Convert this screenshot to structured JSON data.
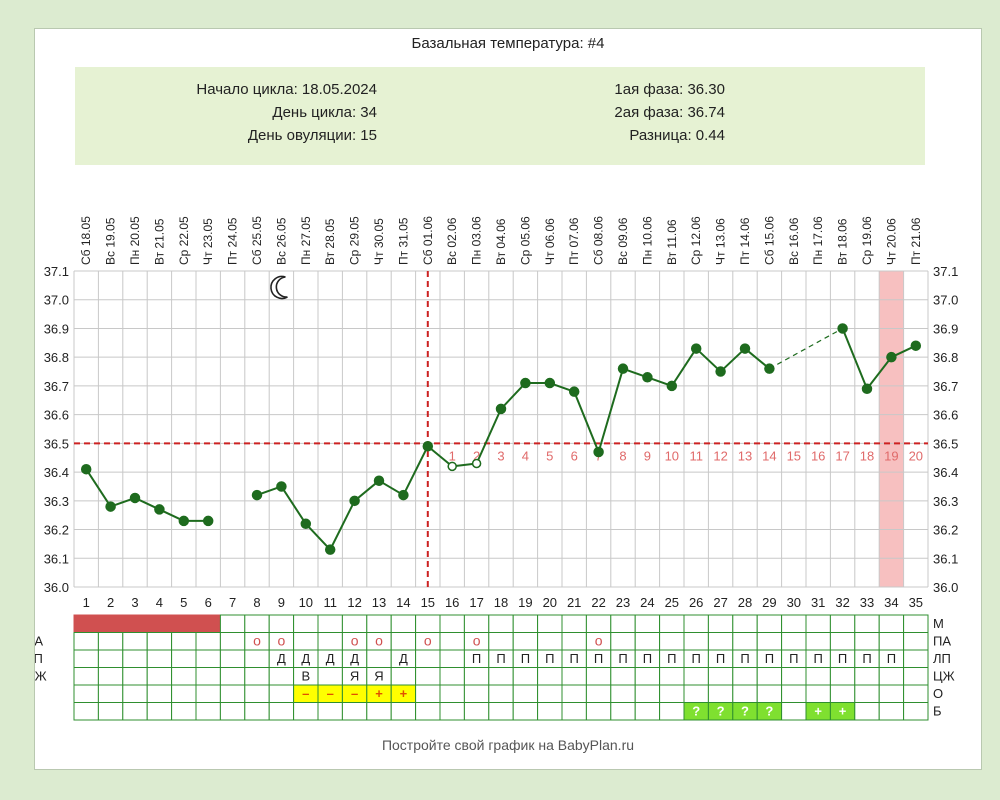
{
  "title": "Базальная температура: #4",
  "info": {
    "cycle_start": "Начало цикла: 18.05.2024",
    "cycle_day": "День цикла: 34",
    "ovulation_day": "День овуляции: 15",
    "phase1": "1ая фаза: 36.30",
    "phase2": "2ая фаза: 36.74",
    "difference": "Разница: 0.44"
  },
  "footer": "Постройте свой график на BabyPlan.ru",
  "colors": {
    "line": "#1e6b1e",
    "threshold": "#cc2222",
    "grid": "#c8c8c8",
    "menstruation": "#d05050",
    "highlight": "#f7c0c0",
    "mucus": "#ffff00",
    "test_positive": "#7fe030",
    "phase_numbers": "#e06a6a"
  },
  "moon_icon": "crescent-moon-icon",
  "chart_data": {
    "type": "line",
    "title": "Базальная температура: #4",
    "ylim": [
      36.0,
      37.1
    ],
    "yticks": [
      "37.1",
      "37.0",
      "36.9",
      "36.8",
      "36.7",
      "36.6",
      "36.5",
      "36.4",
      "36.3",
      "36.2",
      "36.1",
      "36.0"
    ],
    "days": [
      "1",
      "2",
      "3",
      "4",
      "5",
      "6",
      "7",
      "8",
      "9",
      "10",
      "11",
      "12",
      "13",
      "14",
      "15",
      "16",
      "17",
      "18",
      "19",
      "20",
      "21",
      "22",
      "23",
      "24",
      "25",
      "26",
      "27",
      "28",
      "29",
      "30",
      "31",
      "32",
      "33",
      "34",
      "35"
    ],
    "dates": [
      "Сб 18.05",
      "Вс 19.05",
      "Пн 20.05",
      "Вт 21.05",
      "Ср 22.05",
      "Чт 23.05",
      "Пт 24.05",
      "Сб 25.05",
      "Вс 26.05",
      "Пн 27.05",
      "Вт 28.05",
      "Ср 29.05",
      "Чт 30.05",
      "Пт 31.05",
      "Сб 01.06",
      "Вс 02.06",
      "Пн 03.06",
      "Вт 04.06",
      "Ср 05.06",
      "Чт 06.06",
      "Пт 07.06",
      "Сб 08.06",
      "Вс 09.06",
      "Пн 10.06",
      "Вт 11.06",
      "Ср 12.06",
      "Чт 13.06",
      "Пт 14.06",
      "Сб 15.06",
      "Вс 16.06",
      "Пн 17.06",
      "Вт 18.06",
      "Ср 19.06",
      "Чт 20.06",
      "Пт 21.06"
    ],
    "temperatures": [
      36.41,
      36.28,
      36.31,
      36.27,
      36.23,
      36.23,
      null,
      36.32,
      36.35,
      36.22,
      36.13,
      36.3,
      36.37,
      36.32,
      36.49,
      36.42,
      36.43,
      36.62,
      36.71,
      36.71,
      36.68,
      36.47,
      36.76,
      36.73,
      36.7,
      36.83,
      36.75,
      36.83,
      36.76,
      null,
      null,
      36.9,
      36.69,
      36.8,
      36.84
    ],
    "open_points": [
      16,
      17
    ],
    "gap_dashed": [
      [
        29,
        32
      ]
    ],
    "coverline": 36.5,
    "ovulation_day": 15,
    "moon_day": 9,
    "highlight_day": 34,
    "phase_numbers": [
      "1",
      "2",
      "3",
      "4",
      "5",
      "6",
      "7",
      "8",
      "9",
      "10",
      "11",
      "12",
      "13",
      "14",
      "15",
      "16",
      "17",
      "18",
      "19",
      "20"
    ],
    "phase_start_day": 16,
    "rows": [
      {
        "label": "М",
        "cells": [
          "bar",
          "bar",
          "bar",
          "bar",
          "bar",
          "bar",
          "",
          "",
          "",
          "",
          "",
          "",
          "",
          "",
          "",
          "",
          "",
          "",
          "",
          "",
          "",
          "",
          "",
          "",
          "",
          "",
          "",
          "",
          "",
          "",
          "",
          "",
          "",
          "",
          ""
        ]
      },
      {
        "label": "ПА",
        "cells": [
          "",
          "",
          "",
          "",
          "",
          "",
          "",
          "o",
          "o",
          "",
          "",
          "o",
          "o",
          "",
          "o",
          "",
          "o",
          "",
          "",
          "",
          "",
          "o",
          "",
          "",
          "",
          "",
          "",
          "",
          "",
          "",
          "",
          "",
          "",
          "",
          ""
        ]
      },
      {
        "label": "ЛП",
        "cells": [
          "",
          "",
          "",
          "",
          "",
          "",
          "",
          "",
          "Д",
          "Д",
          "Д",
          "Д",
          "",
          "Д",
          "",
          "",
          "П",
          "П",
          "П",
          "П",
          "П",
          "П",
          "П",
          "П",
          "П",
          "П",
          "П",
          "П",
          "П",
          "П",
          "П",
          "П",
          "П",
          "П",
          ""
        ]
      },
      {
        "label": "ЦЖ",
        "cells": [
          "",
          "",
          "",
          "",
          "",
          "",
          "",
          "",
          "",
          "В",
          "",
          "Я",
          "Я",
          "",
          "",
          "",
          "",
          "",
          "",
          "",
          "",
          "",
          "",
          "",
          "",
          "",
          "",
          "",
          "",
          "",
          "",
          "",
          "",
          "",
          ""
        ]
      },
      {
        "label": "О",
        "cells": [
          "",
          "",
          "",
          "",
          "",
          "",
          "",
          "",
          "",
          "–",
          "–",
          "–",
          "+",
          "+",
          "",
          "",
          "",
          "",
          "",
          "",
          "",
          "",
          "",
          "",
          "",
          "",
          "",
          "",
          "",
          "",
          "",
          "",
          "",
          "",
          ""
        ]
      },
      {
        "label": "Б",
        "cells": [
          "",
          "",
          "",
          "",
          "",
          "",
          "",
          "",
          "",
          "",
          "",
          "",
          "",
          "",
          "",
          "",
          "",
          "",
          "",
          "",
          "",
          "",
          "",
          "",
          "",
          "?",
          "?",
          "?",
          "?",
          "",
          "+",
          "+",
          "",
          "",
          ""
        ]
      }
    ]
  }
}
